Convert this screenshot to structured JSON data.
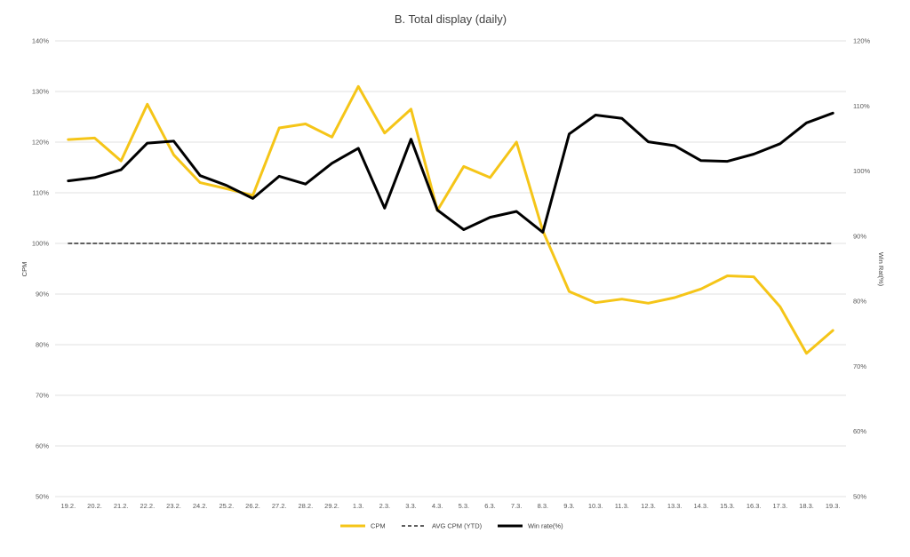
{
  "chart_data": {
    "type": "line",
    "title": "B. Total display (daily)",
    "categories": [
      "19.2.",
      "20.2.",
      "21.2.",
      "22.2.",
      "23.2.",
      "24.2.",
      "25.2.",
      "26.2.",
      "27.2.",
      "28.2.",
      "29.2.",
      "1.3.",
      "2.3.",
      "3.3.",
      "4.3.",
      "5.3.",
      "6.3.",
      "7.3.",
      "8.3.",
      "9.3.",
      "10.3.",
      "11.3.",
      "12.3.",
      "13.3.",
      "14.3.",
      "15.3.",
      "16.3.",
      "17.3.",
      "18.3.",
      "19.3."
    ],
    "ylabel": "CPM",
    "y2label": "Win Rat(%)",
    "ylim": [
      50,
      140
    ],
    "y2lim": [
      50,
      120
    ],
    "yticks": [
      "50%",
      "60%",
      "70%",
      "80%",
      "90%",
      "100%",
      "110%",
      "120%",
      "130%",
      "140%"
    ],
    "y2ticks": [
      "50%",
      "60%",
      "70%",
      "80%",
      "90%",
      "100%",
      "110%",
      "120%"
    ],
    "grid": true,
    "legend_position": "bottom",
    "series": [
      {
        "name": "CPM",
        "axis": "left",
        "color": "#F5C518",
        "style": "solid",
        "values": [
          120.5,
          120.8,
          116.3,
          127.5,
          117.5,
          112.0,
          110.8,
          109.5,
          122.8,
          123.6,
          121.0,
          131.0,
          121.8,
          126.5,
          106.5,
          115.2,
          113.0,
          120.0,
          102.5,
          90.5,
          88.3,
          89.0,
          88.2,
          89.3,
          91.0,
          93.6,
          93.4,
          87.5,
          78.3,
          82.8
        ]
      },
      {
        "name": "AVG CPM (YTD)",
        "axis": "left",
        "color": "#000000",
        "style": "dashed",
        "values": [
          100,
          100,
          100,
          100,
          100,
          100,
          100,
          100,
          100,
          100,
          100,
          100,
          100,
          100,
          100,
          100,
          100,
          100,
          100,
          100,
          100,
          100,
          100,
          100,
          100,
          100,
          100,
          100,
          100,
          100
        ]
      },
      {
        "name": "Win rate(%)",
        "axis": "right",
        "color": "#000000",
        "style": "solid",
        "values": [
          98.5,
          99.0,
          100.2,
          104.3,
          104.6,
          99.3,
          97.8,
          95.8,
          99.2,
          98.0,
          101.2,
          103.5,
          94.3,
          104.9,
          94.0,
          91.0,
          92.9,
          93.8,
          90.6,
          105.7,
          108.6,
          108.1,
          104.5,
          103.9,
          101.6,
          101.5,
          102.6,
          104.2,
          107.4,
          108.9
        ]
      }
    ]
  }
}
